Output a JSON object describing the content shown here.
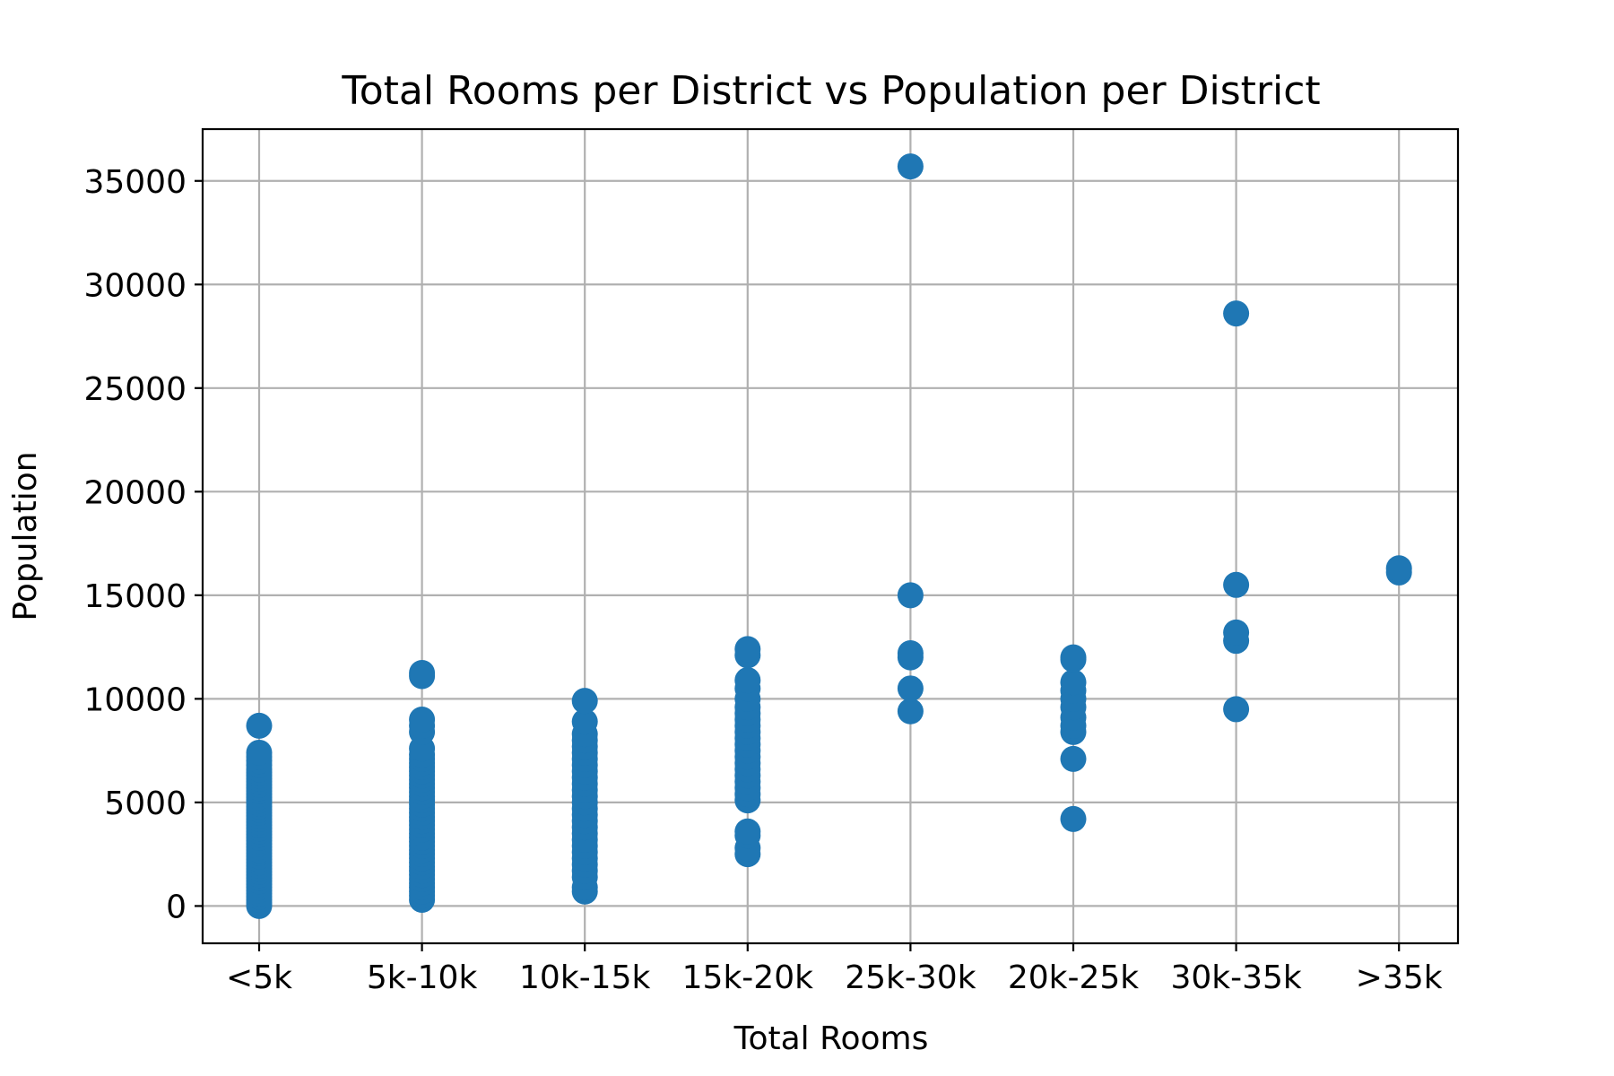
{
  "chart_data": {
    "type": "scatter",
    "title": "Total Rooms per District vs Population per District",
    "xlabel": "Total Rooms",
    "ylabel": "Population",
    "categories": [
      "<5k",
      "5k-10k",
      "10k-15k",
      "15k-20k",
      "25k-30k",
      "20k-25k",
      "30k-35k",
      ">35k"
    ],
    "ylim": [
      -1800,
      37500
    ],
    "yticks": [
      0,
      5000,
      10000,
      15000,
      20000,
      25000,
      30000,
      35000
    ],
    "grid": true,
    "marker_color": "#1f77b4",
    "series": [
      {
        "points": [
          {
            "x": "<5k",
            "y": 0
          },
          {
            "x": "<5k",
            "y": 150
          },
          {
            "x": "<5k",
            "y": 300
          },
          {
            "x": "<5k",
            "y": 450
          },
          {
            "x": "<5k",
            "y": 600
          },
          {
            "x": "<5k",
            "y": 750
          },
          {
            "x": "<5k",
            "y": 900
          },
          {
            "x": "<5k",
            "y": 1050
          },
          {
            "x": "<5k",
            "y": 1200
          },
          {
            "x": "<5k",
            "y": 1350
          },
          {
            "x": "<5k",
            "y": 1500
          },
          {
            "x": "<5k",
            "y": 1650
          },
          {
            "x": "<5k",
            "y": 1800
          },
          {
            "x": "<5k",
            "y": 1950
          },
          {
            "x": "<5k",
            "y": 2100
          },
          {
            "x": "<5k",
            "y": 2250
          },
          {
            "x": "<5k",
            "y": 2400
          },
          {
            "x": "<5k",
            "y": 2550
          },
          {
            "x": "<5k",
            "y": 2700
          },
          {
            "x": "<5k",
            "y": 2850
          },
          {
            "x": "<5k",
            "y": 3000
          },
          {
            "x": "<5k",
            "y": 3150
          },
          {
            "x": "<5k",
            "y": 3300
          },
          {
            "x": "<5k",
            "y": 3450
          },
          {
            "x": "<5k",
            "y": 3600
          },
          {
            "x": "<5k",
            "y": 3750
          },
          {
            "x": "<5k",
            "y": 3900
          },
          {
            "x": "<5k",
            "y": 4050
          },
          {
            "x": "<5k",
            "y": 4200
          },
          {
            "x": "<5k",
            "y": 4350
          },
          {
            "x": "<5k",
            "y": 4500
          },
          {
            "x": "<5k",
            "y": 4650
          },
          {
            "x": "<5k",
            "y": 4800
          },
          {
            "x": "<5k",
            "y": 4950
          },
          {
            "x": "<5k",
            "y": 5100
          },
          {
            "x": "<5k",
            "y": 5250
          },
          {
            "x": "<5k",
            "y": 5400
          },
          {
            "x": "<5k",
            "y": 5550
          },
          {
            "x": "<5k",
            "y": 5700
          },
          {
            "x": "<5k",
            "y": 5850
          },
          {
            "x": "<5k",
            "y": 6000
          },
          {
            "x": "<5k",
            "y": 6150
          },
          {
            "x": "<5k",
            "y": 6300
          },
          {
            "x": "<5k",
            "y": 6450
          },
          {
            "x": "<5k",
            "y": 6600
          },
          {
            "x": "<5k",
            "y": 6800
          },
          {
            "x": "<5k",
            "y": 7000
          },
          {
            "x": "<5k",
            "y": 7200
          },
          {
            "x": "<5k",
            "y": 7400
          },
          {
            "x": "<5k",
            "y": 8700
          },
          {
            "x": "5k-10k",
            "y": 300
          },
          {
            "x": "5k-10k",
            "y": 500
          },
          {
            "x": "5k-10k",
            "y": 700
          },
          {
            "x": "5k-10k",
            "y": 900
          },
          {
            "x": "5k-10k",
            "y": 1100
          },
          {
            "x": "5k-10k",
            "y": 1300
          },
          {
            "x": "5k-10k",
            "y": 1500
          },
          {
            "x": "5k-10k",
            "y": 1700
          },
          {
            "x": "5k-10k",
            "y": 1900
          },
          {
            "x": "5k-10k",
            "y": 2100
          },
          {
            "x": "5k-10k",
            "y": 2300
          },
          {
            "x": "5k-10k",
            "y": 2500
          },
          {
            "x": "5k-10k",
            "y": 2700
          },
          {
            "x": "5k-10k",
            "y": 2900
          },
          {
            "x": "5k-10k",
            "y": 3100
          },
          {
            "x": "5k-10k",
            "y": 3300
          },
          {
            "x": "5k-10k",
            "y": 3500
          },
          {
            "x": "5k-10k",
            "y": 3700
          },
          {
            "x": "5k-10k",
            "y": 3900
          },
          {
            "x": "5k-10k",
            "y": 4100
          },
          {
            "x": "5k-10k",
            "y": 4300
          },
          {
            "x": "5k-10k",
            "y": 4500
          },
          {
            "x": "5k-10k",
            "y": 4700
          },
          {
            "x": "5k-10k",
            "y": 4900
          },
          {
            "x": "5k-10k",
            "y": 5100
          },
          {
            "x": "5k-10k",
            "y": 5300
          },
          {
            "x": "5k-10k",
            "y": 5500
          },
          {
            "x": "5k-10k",
            "y": 5700
          },
          {
            "x": "5k-10k",
            "y": 5900
          },
          {
            "x": "5k-10k",
            "y": 6100
          },
          {
            "x": "5k-10k",
            "y": 6300
          },
          {
            "x": "5k-10k",
            "y": 6500
          },
          {
            "x": "5k-10k",
            "y": 6700
          },
          {
            "x": "5k-10k",
            "y": 6900
          },
          {
            "x": "5k-10k",
            "y": 7100
          },
          {
            "x": "5k-10k",
            "y": 7300
          },
          {
            "x": "5k-10k",
            "y": 7600
          },
          {
            "x": "5k-10k",
            "y": 8400
          },
          {
            "x": "5k-10k",
            "y": 8700
          },
          {
            "x": "5k-10k",
            "y": 9000
          },
          {
            "x": "5k-10k",
            "y": 11100
          },
          {
            "x": "5k-10k",
            "y": 11250
          },
          {
            "x": "10k-15k",
            "y": 700
          },
          {
            "x": "10k-15k",
            "y": 900
          },
          {
            "x": "10k-15k",
            "y": 1400
          },
          {
            "x": "10k-15k",
            "y": 1700
          },
          {
            "x": "10k-15k",
            "y": 2000
          },
          {
            "x": "10k-15k",
            "y": 2300
          },
          {
            "x": "10k-15k",
            "y": 2600
          },
          {
            "x": "10k-15k",
            "y": 2900
          },
          {
            "x": "10k-15k",
            "y": 3200
          },
          {
            "x": "10k-15k",
            "y": 3500
          },
          {
            "x": "10k-15k",
            "y": 3800
          },
          {
            "x": "10k-15k",
            "y": 4100
          },
          {
            "x": "10k-15k",
            "y": 4400
          },
          {
            "x": "10k-15k",
            "y": 4700
          },
          {
            "x": "10k-15k",
            "y": 5000
          },
          {
            "x": "10k-15k",
            "y": 5300
          },
          {
            "x": "10k-15k",
            "y": 5600
          },
          {
            "x": "10k-15k",
            "y": 5900
          },
          {
            "x": "10k-15k",
            "y": 6200
          },
          {
            "x": "10k-15k",
            "y": 6500
          },
          {
            "x": "10k-15k",
            "y": 6800
          },
          {
            "x": "10k-15k",
            "y": 7100
          },
          {
            "x": "10k-15k",
            "y": 7400
          },
          {
            "x": "10k-15k",
            "y": 7700
          },
          {
            "x": "10k-15k",
            "y": 8000
          },
          {
            "x": "10k-15k",
            "y": 8300
          },
          {
            "x": "10k-15k",
            "y": 8900
          },
          {
            "x": "10k-15k",
            "y": 9900
          },
          {
            "x": "15k-20k",
            "y": 2500
          },
          {
            "x": "15k-20k",
            "y": 2800
          },
          {
            "x": "15k-20k",
            "y": 3400
          },
          {
            "x": "15k-20k",
            "y": 3600
          },
          {
            "x": "15k-20k",
            "y": 5100
          },
          {
            "x": "15k-20k",
            "y": 5400
          },
          {
            "x": "15k-20k",
            "y": 5700
          },
          {
            "x": "15k-20k",
            "y": 6000
          },
          {
            "x": "15k-20k",
            "y": 6300
          },
          {
            "x": "15k-20k",
            "y": 6600
          },
          {
            "x": "15k-20k",
            "y": 6900
          },
          {
            "x": "15k-20k",
            "y": 7200
          },
          {
            "x": "15k-20k",
            "y": 7500
          },
          {
            "x": "15k-20k",
            "y": 7800
          },
          {
            "x": "15k-20k",
            "y": 8100
          },
          {
            "x": "15k-20k",
            "y": 8400
          },
          {
            "x": "15k-20k",
            "y": 8700
          },
          {
            "x": "15k-20k",
            "y": 9000
          },
          {
            "x": "15k-20k",
            "y": 9300
          },
          {
            "x": "15k-20k",
            "y": 9600
          },
          {
            "x": "15k-20k",
            "y": 10000
          },
          {
            "x": "15k-20k",
            "y": 10500
          },
          {
            "x": "15k-20k",
            "y": 10900
          },
          {
            "x": "15k-20k",
            "y": 12100
          },
          {
            "x": "15k-20k",
            "y": 12400
          },
          {
            "x": "25k-30k",
            "y": 9400
          },
          {
            "x": "25k-30k",
            "y": 10500
          },
          {
            "x": "25k-30k",
            "y": 12000
          },
          {
            "x": "25k-30k",
            "y": 12200
          },
          {
            "x": "25k-30k",
            "y": 15000
          },
          {
            "x": "25k-30k",
            "y": 35700
          },
          {
            "x": "20k-25k",
            "y": 4200
          },
          {
            "x": "20k-25k",
            "y": 7100
          },
          {
            "x": "20k-25k",
            "y": 8400
          },
          {
            "x": "20k-25k",
            "y": 8700
          },
          {
            "x": "20k-25k",
            "y": 9100
          },
          {
            "x": "20k-25k",
            "y": 9600
          },
          {
            "x": "20k-25k",
            "y": 10000
          },
          {
            "x": "20k-25k",
            "y": 10400
          },
          {
            "x": "20k-25k",
            "y": 10800
          },
          {
            "x": "20k-25k",
            "y": 11900
          },
          {
            "x": "20k-25k",
            "y": 12000
          },
          {
            "x": "30k-35k",
            "y": 9500
          },
          {
            "x": "30k-35k",
            "y": 12800
          },
          {
            "x": "30k-35k",
            "y": 13200
          },
          {
            "x": "30k-35k",
            "y": 15500
          },
          {
            "x": "30k-35k",
            "y": 28600
          },
          {
            "x": ">35k",
            "y": 16100
          },
          {
            "x": ">35k",
            "y": 16300
          }
        ]
      }
    ]
  }
}
